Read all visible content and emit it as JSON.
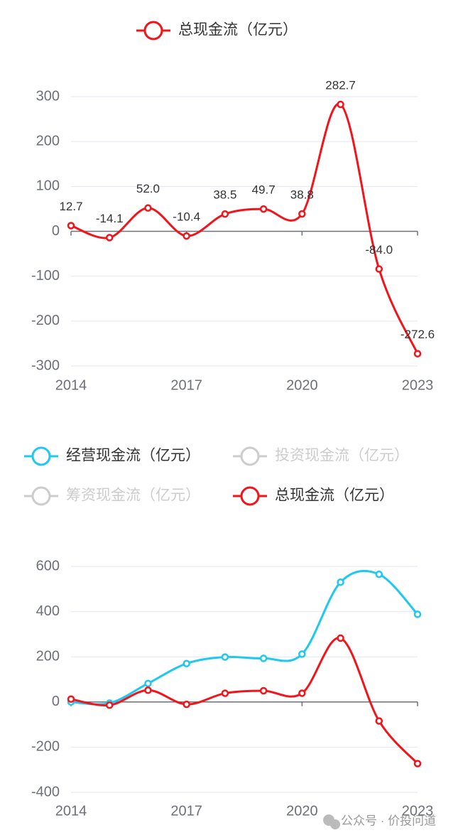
{
  "chart_data": [
    {
      "type": "line",
      "categories": [
        "2014",
        null,
        null,
        "2017",
        null,
        null,
        "2020",
        null,
        null,
        "2023"
      ],
      "series": [
        {
          "name": "总现金流（亿元）",
          "color": "#f2141a",
          "values": [
            12.7,
            -14.1,
            52,
            -10.4,
            38.5,
            49.7,
            38.8,
            282.7,
            -84,
            -272.6
          ],
          "value_labels": [
            "12.7",
            "-14.1",
            "52.0",
            "-10.4",
            "38.5",
            "49.7",
            "38.8",
            "282.7",
            "-84.0",
            "-272.6"
          ]
        }
      ],
      "ylim": [
        -300,
        300
      ],
      "yticks": [
        -300,
        -200,
        -100,
        0,
        100,
        200,
        300
      ],
      "grid": true
    },
    {
      "type": "line",
      "categories": [
        "2014",
        null,
        null,
        "2017",
        null,
        null,
        "2020",
        null,
        null,
        "2023"
      ],
      "series": [
        {
          "name": "经营现金流（亿元）",
          "color": "#1ec8f0",
          "values": [
            0,
            -5,
            82,
            170,
            199,
            193,
            212,
            530,
            565,
            388
          ]
        },
        {
          "name": "投资现金流（亿元）",
          "color": "#cccccc",
          "hidden": true
        },
        {
          "name": "筹资现金流（亿元）",
          "color": "#cccccc",
          "hidden": true
        },
        {
          "name": "总现金流（亿元）",
          "color": "#f2141a",
          "values": [
            12.7,
            -14.1,
            52,
            -10.4,
            38.5,
            49.7,
            38.8,
            282.7,
            -84,
            -272.6
          ]
        }
      ],
      "ylim": [
        -400,
        600
      ],
      "yticks": [
        -400,
        -200,
        0,
        200,
        400,
        600
      ],
      "grid": true
    }
  ],
  "watermark": "公众号 · 价投问道"
}
